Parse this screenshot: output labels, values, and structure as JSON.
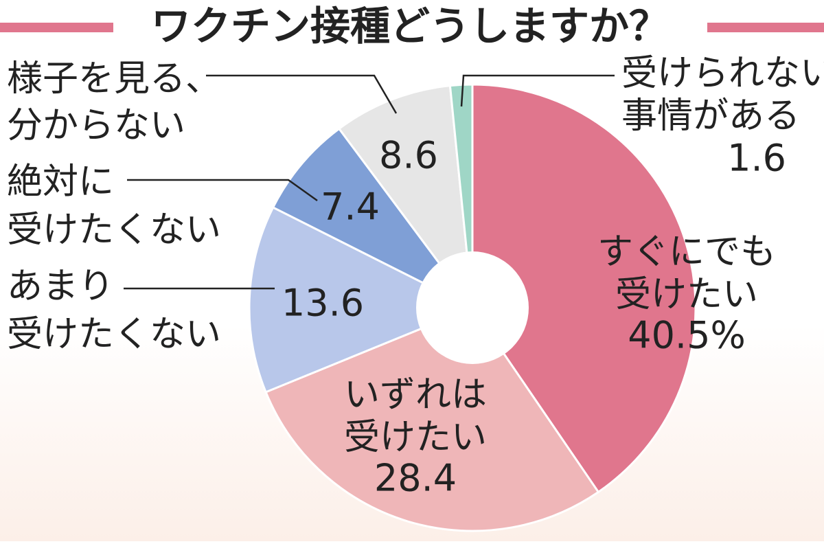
{
  "chart_data": {
    "type": "pie",
    "title": "ワクチン接種どうしますか？",
    "categories": [
      [
        "すぐにでも",
        "受けたい"
      ],
      [
        "いずれは",
        "受けたい"
      ],
      [
        "あまり",
        "受けたくない"
      ],
      [
        "絶対に",
        "受けたくない"
      ],
      [
        "様子を見る、",
        "分からない"
      ],
      [
        "受けられない",
        "事情がある"
      ]
    ],
    "values": [
      40.5,
      28.4,
      13.6,
      7.4,
      8.6,
      1.6
    ],
    "value_labels": [
      "40.5%",
      "28.4",
      "13.6",
      "7.4",
      "8.6",
      "1.6"
    ],
    "colors": [
      "#e0768d",
      "#efb6b8",
      "#b8c7ea",
      "#7f9fd6",
      "#e6e6e6",
      "#9fd6c6"
    ]
  }
}
